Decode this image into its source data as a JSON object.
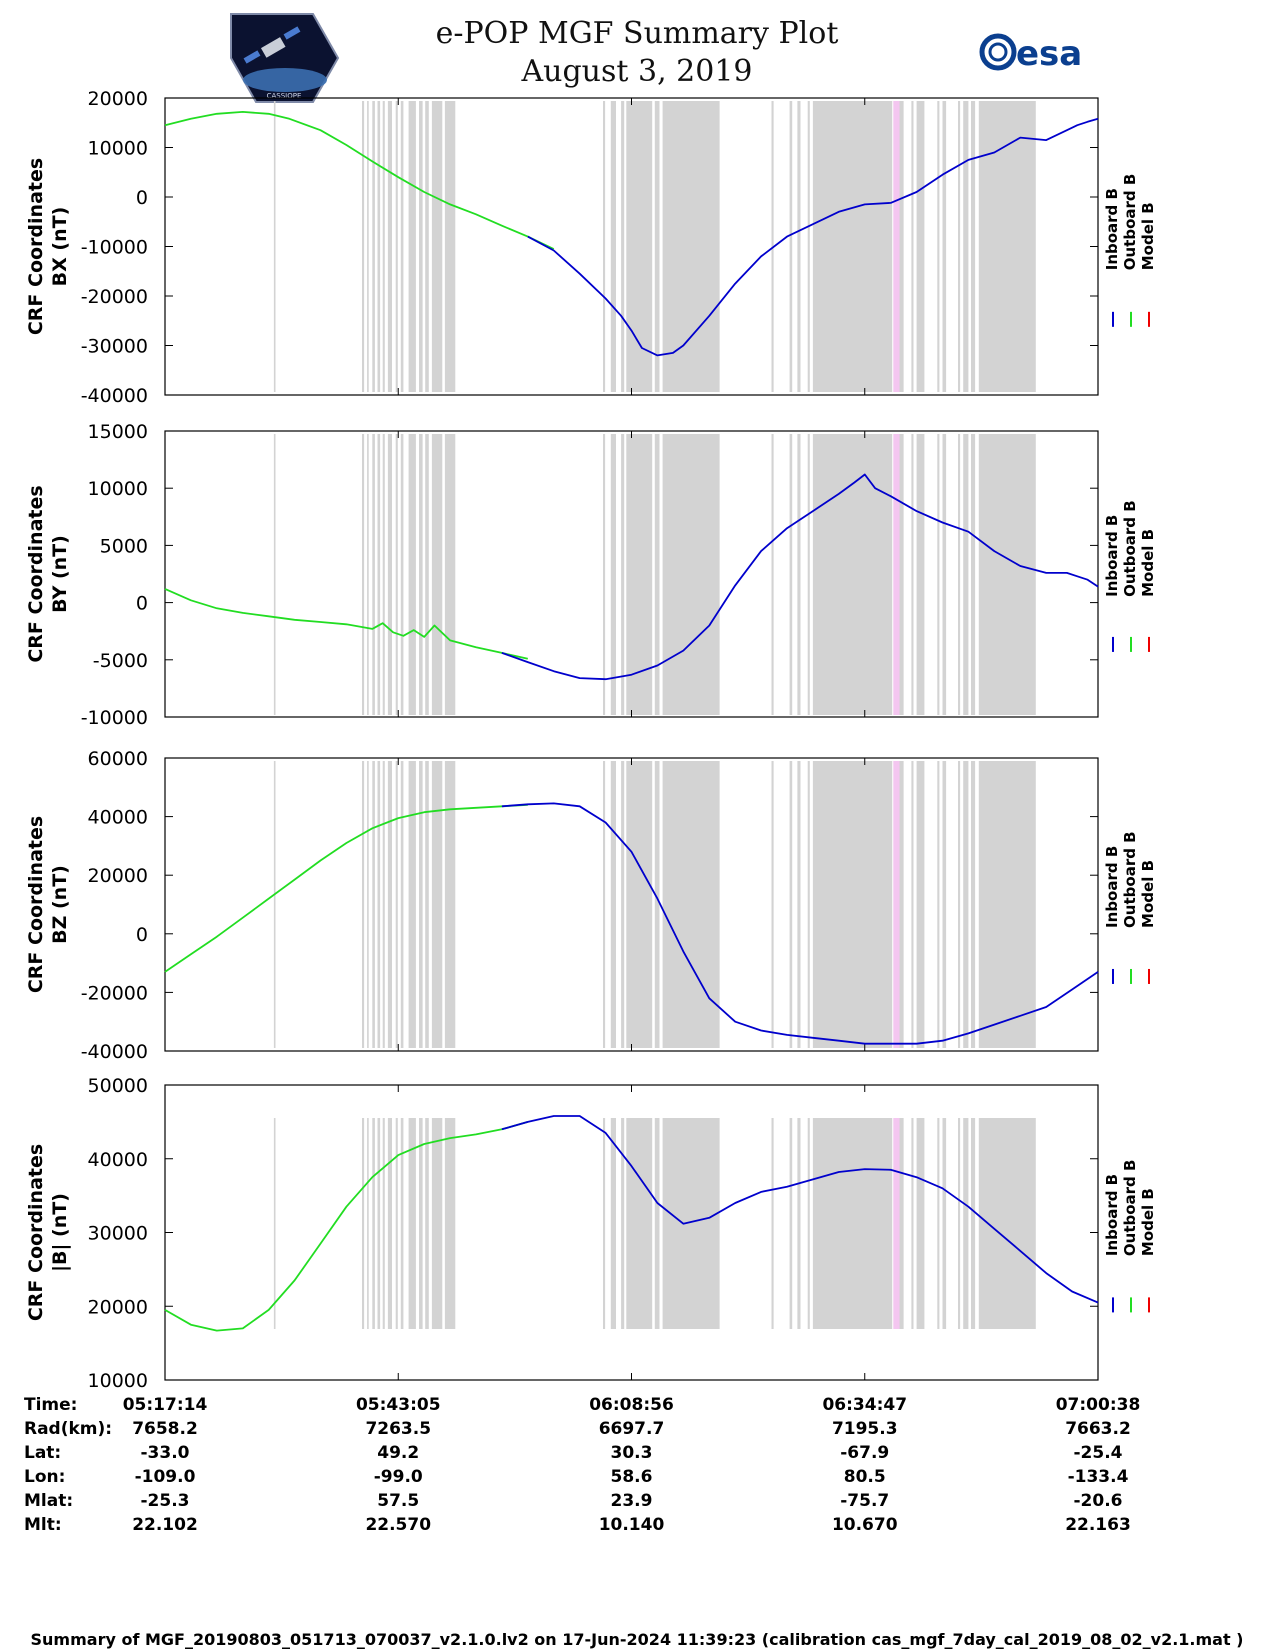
{
  "header": {
    "title": "e-POP MGF Summary Plot",
    "date": "August 3, 2019",
    "logo_left_text": "CASSIOPE",
    "logo_right_text": "esa"
  },
  "legend": [
    "Inboard B",
    "Outboard B",
    "Model B"
  ],
  "colors": {
    "inboard": "#0000cc",
    "outboard": "#22dd22",
    "model": "#ee0000",
    "gap": "#d3d3d3",
    "gap_pink": "#f4c6f0",
    "axis": "#000000"
  },
  "chart_data": [
    {
      "type": "line",
      "title": "",
      "xlabel": "",
      "ylabel_line1": "CRF Coordinates",
      "ylabel_line2": "BX (nT)",
      "ylim": [
        -40000,
        20000
      ],
      "yticks": [
        20000,
        10000,
        0,
        -10000,
        -20000,
        -30000,
        -40000
      ],
      "ytick_labels": [
        "20000",
        "10000",
        "0",
        "-10000",
        "-20000",
        "-30000",
        "-40000"
      ],
      "series": [
        {
          "name": "Outboard B",
          "x": [
            0,
            5,
            10,
            15,
            20,
            24,
            30,
            35,
            40,
            45,
            50,
            55,
            60,
            65,
            70,
            75
          ],
          "values": [
            14500,
            15800,
            16800,
            17200,
            16800,
            15800,
            13500,
            10500,
            7200,
            4000,
            1000,
            -1500,
            -3500,
            -5800,
            -8000,
            -10500
          ]
        },
        {
          "name": "Inboard B",
          "x": [
            70,
            75,
            80,
            85,
            88,
            90,
            92,
            95,
            98,
            100,
            105,
            110,
            115,
            120,
            125,
            130,
            135,
            140,
            145,
            150,
            155,
            160,
            165,
            170,
            174,
            176,
            178,
            180
          ],
          "values": [
            -8000,
            -10800,
            -15500,
            -20500,
            -24000,
            -27000,
            -30500,
            -32000,
            -31500,
            -30000,
            -24000,
            -17500,
            -12000,
            -8000,
            -5500,
            -3000,
            -1500,
            -1200,
            1000,
            4500,
            7500,
            9000,
            12000,
            11500,
            13500,
            14500,
            15200,
            15800
          ]
        }
      ]
    },
    {
      "type": "line",
      "title": "",
      "xlabel": "",
      "ylabel_line1": "CRF Coordinates",
      "ylabel_line2": "BY (nT)",
      "ylim": [
        -10000,
        15000
      ],
      "yticks": [
        15000,
        10000,
        5000,
        0,
        -5000,
        -10000
      ],
      "ytick_labels": [
        "15000",
        "10000",
        "5000",
        "0",
        "-5000",
        "-10000"
      ],
      "series": [
        {
          "name": "Outboard B",
          "x": [
            0,
            5,
            10,
            15,
            20,
            25,
            30,
            35,
            40,
            42,
            44,
            46,
            48,
            50,
            52,
            55,
            60,
            65,
            70
          ],
          "values": [
            1200,
            200,
            -500,
            -900,
            -1200,
            -1500,
            -1700,
            -1900,
            -2300,
            -1800,
            -2600,
            -2900,
            -2400,
            -3000,
            -2000,
            -3300,
            -3900,
            -4400,
            -4900
          ]
        },
        {
          "name": "Inboard B",
          "x": [
            65,
            70,
            75,
            80,
            85,
            90,
            95,
            100,
            105,
            110,
            115,
            120,
            125,
            130,
            133,
            135,
            137,
            140,
            145,
            150,
            155,
            160,
            165,
            170,
            174,
            176,
            178,
            180
          ],
          "values": [
            -4400,
            -5200,
            -6000,
            -6600,
            -6700,
            -6300,
            -5500,
            -4200,
            -2000,
            1500,
            4500,
            6500,
            8000,
            9500,
            10500,
            11200,
            10000,
            9300,
            8000,
            7000,
            6200,
            4500,
            3200,
            2600,
            2600,
            2300,
            2000,
            1400
          ]
        }
      ]
    },
    {
      "type": "line",
      "title": "",
      "xlabel": "",
      "ylabel_line1": "CRF Coordinates",
      "ylabel_line2": "BZ (nT)",
      "ylim": [
        -40000,
        60000
      ],
      "yticks": [
        60000,
        40000,
        20000,
        0,
        -20000,
        -40000
      ],
      "ytick_labels": [
        "60000",
        "40000",
        "20000",
        "0",
        "-20000",
        "-40000"
      ],
      "series": [
        {
          "name": "Outboard B",
          "x": [
            0,
            5,
            10,
            15,
            20,
            25,
            30,
            35,
            40,
            45,
            50,
            55,
            60,
            65,
            70
          ],
          "values": [
            -13000,
            -7000,
            -1000,
            5500,
            12000,
            18500,
            25000,
            31000,
            36000,
            39500,
            41500,
            42500,
            43000,
            43500,
            44000
          ]
        },
        {
          "name": "Inboard B",
          "x": [
            65,
            70,
            75,
            80,
            85,
            90,
            95,
            100,
            105,
            110,
            115,
            120,
            125,
            130,
            135,
            140,
            145,
            150,
            155,
            160,
            165,
            170,
            175,
            180
          ],
          "values": [
            43500,
            44200,
            44500,
            43500,
            38000,
            28000,
            12000,
            -6000,
            -22000,
            -30000,
            -33000,
            -34500,
            -35500,
            -36500,
            -37500,
            -37500,
            -37500,
            -36500,
            -34000,
            -31000,
            -28000,
            -25000,
            -19000,
            -13000
          ]
        }
      ]
    },
    {
      "type": "line",
      "title": "",
      "xlabel": "",
      "ylabel_line1": "CRF Coordinates",
      "ylabel_line2": "|B| (nT)",
      "ylim": [
        10000,
        50000
      ],
      "yticks": [
        50000,
        40000,
        30000,
        20000,
        10000
      ],
      "ytick_labels": [
        "50000",
        "40000",
        "30000",
        "20000",
        "10000"
      ],
      "series": [
        {
          "name": "Outboard B",
          "x": [
            0,
            5,
            10,
            15,
            20,
            25,
            30,
            35,
            40,
            45,
            50,
            55,
            60,
            65,
            70
          ],
          "values": [
            19500,
            17500,
            16700,
            17000,
            19500,
            23500,
            28500,
            33500,
            37500,
            40500,
            42000,
            42800,
            43300,
            44000,
            45000
          ]
        },
        {
          "name": "Inboard B",
          "x": [
            65,
            70,
            75,
            80,
            85,
            90,
            95,
            100,
            105,
            110,
            115,
            120,
            125,
            130,
            135,
            140,
            145,
            150,
            155,
            160,
            165,
            170,
            175,
            180
          ],
          "values": [
            44000,
            45000,
            45800,
            45800,
            43500,
            39000,
            34000,
            31200,
            32000,
            34000,
            35500,
            36200,
            37200,
            38200,
            38600,
            38500,
            37500,
            36000,
            33500,
            30500,
            27500,
            24500,
            22000,
            20500
          ]
        }
      ]
    }
  ],
  "x_axis": {
    "range_min": [
      0,
      180
    ],
    "tick_minutes": [
      0,
      45,
      90,
      135,
      180
    ]
  },
  "gap_intervals_min": [
    [
      21,
      21.3
    ],
    [
      38,
      38.4
    ],
    [
      39,
      39.3
    ],
    [
      40,
      40.5
    ],
    [
      41,
      41.5
    ],
    [
      42,
      42.4
    ],
    [
      43,
      43.8
    ],
    [
      44.5,
      44.9
    ],
    [
      45.5,
      46
    ],
    [
      47,
      48.4
    ],
    [
      49,
      49.7
    ],
    [
      50.2,
      50.9
    ],
    [
      51.5,
      53.5
    ],
    [
      54,
      56
    ],
    [
      84.5,
      84.9
    ],
    [
      86,
      87
    ],
    [
      88,
      88.6
    ],
    [
      89,
      94
    ],
    [
      94.5,
      95.4
    ],
    [
      96,
      107
    ],
    [
      117,
      117.4
    ],
    [
      120.5,
      121
    ],
    [
      122,
      122.6
    ],
    [
      124,
      124.4
    ],
    [
      125,
      140.3
    ],
    [
      141.5,
      142.5
    ],
    [
      144,
      144.4
    ],
    [
      145,
      146.5
    ],
    [
      149,
      149.4
    ],
    [
      150,
      150.7
    ],
    [
      153,
      153.4
    ],
    [
      154,
      155
    ],
    [
      155.5,
      156.3
    ],
    [
      157,
      168
    ]
  ],
  "pink_interval_min": [
    140.5,
    141.7
  ],
  "info_table": {
    "labels": [
      "Time:",
      "Rad(km):",
      "Lat:",
      "Lon:",
      "Mlat:",
      "Mlt:"
    ],
    "columns": [
      [
        "05:17:14",
        "7658.2",
        "-33.0",
        "-109.0",
        "-25.3",
        "22.102"
      ],
      [
        "05:43:05",
        "7263.5",
        "49.2",
        "-99.0",
        "57.5",
        "22.570"
      ],
      [
        "06:08:56",
        "6697.7",
        "30.3",
        "58.6",
        "23.9",
        "10.140"
      ],
      [
        "06:34:47",
        "7195.3",
        "-67.9",
        "80.5",
        "-75.7",
        "10.670"
      ],
      [
        "07:00:38",
        "7663.2",
        "-25.4",
        "-133.4",
        "-20.6",
        "22.163"
      ]
    ]
  },
  "footer": "Summary of MGF_20190803_051713_070037_v2.1.0.lv2 on 17-Jun-2024 11:39:23 (calibration cas_mgf_7day_cal_2019_08_02_v2.1.mat )"
}
